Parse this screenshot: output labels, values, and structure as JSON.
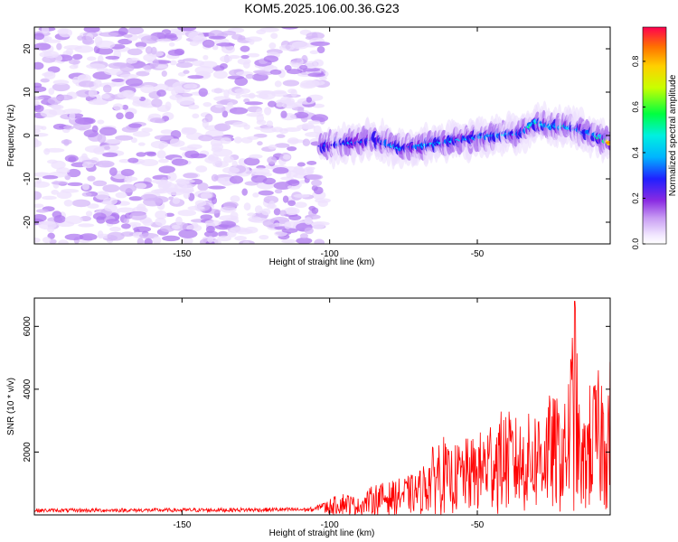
{
  "figure_title": "KOM5.2025.106.00.36.G23",
  "chart_data": [
    {
      "type": "heatmap",
      "title": "KOM5.2025.106.00.36.G23",
      "xlabel": "Height of straight line (km)",
      "ylabel": "Frequency (Hz)",
      "xlim": [
        -200,
        -5
      ],
      "ylim": [
        -25,
        25
      ],
      "xticks": [
        -150,
        -100,
        -50
      ],
      "yticks": [
        -20,
        -10,
        0,
        10,
        20
      ],
      "colorbar": {
        "label": "Normalized spectral amplitude",
        "range": [
          0,
          0.95
        ],
        "ticks": [
          0.0,
          0.2,
          0.4,
          0.6,
          0.8
        ],
        "colormap": [
          "#f2e8ff",
          "#b37ff0",
          "#7f1fe6",
          "#2020ff",
          "#00e5ff",
          "#00ff40",
          "#ffff00",
          "#ff8000",
          "#ff0040"
        ]
      },
      "noise_region": {
        "x_from": -200,
        "x_to": -102,
        "freq_from": -25,
        "freq_to": 25,
        "amplitude": [
          0.02,
          0.15
        ]
      },
      "signal_ridge": {
        "x": [
          -103,
          -95,
          -85,
          -75,
          -65,
          -55,
          -45,
          -35,
          -30,
          -25,
          -20,
          -15,
          -10,
          -5
        ],
        "freq": [
          -2.5,
          -2,
          -1,
          -3,
          -2,
          -1,
          0,
          0.5,
          3,
          2,
          2,
          1,
          0,
          -1.5
        ],
        "amplitude": [
          0.3,
          0.35,
          0.35,
          0.4,
          0.4,
          0.4,
          0.45,
          0.4,
          0.5,
          0.45,
          0.45,
          0.4,
          0.4,
          0.9
        ]
      },
      "grid": false
    },
    {
      "type": "line",
      "xlabel": "Height of straight line (km)",
      "ylabel": "SNR (10 * v/v)",
      "xlim": [
        -200,
        -5
      ],
      "ylim": [
        0,
        6900
      ],
      "xticks": [
        -150,
        -100,
        -50
      ],
      "yticks": [
        2000,
        4000,
        6000
      ],
      "series": [
        {
          "color": "#ff0000",
          "x": [
            -200,
            -150,
            -105,
            -100,
            -95,
            -90,
            -85,
            -80,
            -75,
            -70,
            -65,
            -62,
            -60,
            -55,
            -50,
            -45,
            -40,
            -35,
            -30,
            -25,
            -20,
            -17,
            -15,
            -12,
            -10,
            -7,
            -5
          ],
          "y": [
            150,
            160,
            180,
            500,
            700,
            500,
            950,
            1000,
            1150,
            1300,
            2100,
            2600,
            2000,
            2300,
            2400,
            3100,
            3200,
            2900,
            3300,
            3700,
            3400,
            6800,
            2400,
            4000,
            4300,
            4600,
            4800
          ]
        }
      ],
      "grid": false
    }
  ]
}
